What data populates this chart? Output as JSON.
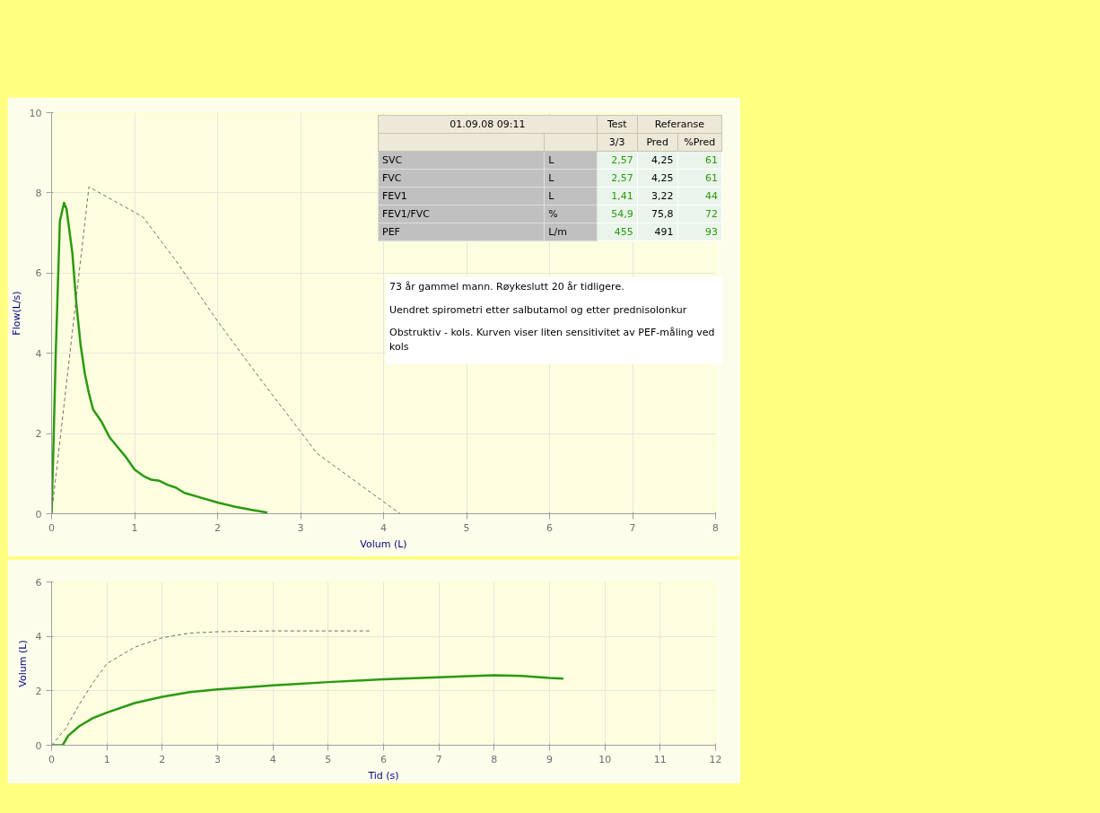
{
  "chart_data": [
    {
      "type": "line",
      "xlabel": "Volum (L)",
      "ylabel": "Flow(L/s)",
      "xlim": [
        0,
        8
      ],
      "ylim": [
        0,
        10
      ],
      "xticks": [
        0,
        1,
        2,
        3,
        4,
        5,
        6,
        7,
        8
      ],
      "yticks": [
        0,
        2,
        4,
        6,
        8,
        10
      ],
      "grid": true,
      "series": [
        {
          "color": "#2a9a10",
          "line_style": "solid",
          "x": [
            0,
            0.02,
            0.05,
            0.1,
            0.15,
            0.18,
            0.25,
            0.3,
            0.35,
            0.4,
            0.45,
            0.5,
            0.6,
            0.7,
            0.8,
            0.9,
            1.0,
            1.1,
            1.2,
            1.3,
            1.4,
            1.5,
            1.6,
            1.8,
            2.0,
            2.2,
            2.4,
            2.6
          ],
          "values": [
            0,
            1.5,
            4,
            7.3,
            7.75,
            7.6,
            6.5,
            5.2,
            4.2,
            3.5,
            3.0,
            2.6,
            2.3,
            1.9,
            1.65,
            1.4,
            1.1,
            0.95,
            0.85,
            0.82,
            0.72,
            0.65,
            0.52,
            0.4,
            0.28,
            0.18,
            0.1,
            0.03
          ]
        },
        {
          "color": "#707070",
          "line_style": "dashed",
          "x": [
            0,
            0.45,
            1.1,
            1.5,
            2.0,
            2.5,
            3.2,
            4.2
          ],
          "values": [
            0,
            8.15,
            7.4,
            6.3,
            4.8,
            3.4,
            1.5,
            0
          ]
        }
      ],
      "annotations": [
        "73 år gammel mann. Røykeslutt 20 år tidligere.",
        "Uendret spirometri etter salbutamol og etter prednisolonkur",
        "Obstruktiv - kols. Kurven viser liten sensitivitet av PEF-måling ved kols"
      ]
    },
    {
      "type": "line",
      "xlabel": "Tid (s)",
      "ylabel": "Volum (L)",
      "xlim": [
        0,
        12
      ],
      "ylim": [
        0,
        6
      ],
      "xticks": [
        0,
        1,
        2,
        3,
        4,
        5,
        6,
        7,
        8,
        9,
        10,
        11,
        12
      ],
      "yticks": [
        0,
        2,
        4,
        6
      ],
      "grid": true,
      "series": [
        {
          "color": "#2a9a10",
          "line_style": "solid",
          "x": [
            0,
            0.2,
            0.3,
            0.5,
            0.75,
            1,
            1.5,
            2,
            2.5,
            3,
            4,
            5,
            6,
            7,
            8,
            8.5,
            9,
            9.25
          ],
          "values": [
            0,
            0,
            0.35,
            0.7,
            1.0,
            1.2,
            1.55,
            1.78,
            1.95,
            2.05,
            2.2,
            2.32,
            2.42,
            2.5,
            2.57,
            2.55,
            2.47,
            2.45
          ]
        },
        {
          "color": "#707070",
          "line_style": "dashed",
          "x": [
            0,
            0.25,
            0.5,
            0.75,
            1,
            1.5,
            2,
            2.5,
            3,
            4,
            5,
            5.75
          ],
          "values": [
            0,
            0.6,
            1.5,
            2.3,
            3.0,
            3.6,
            3.95,
            4.12,
            4.17,
            4.2,
            4.2,
            4.2
          ]
        }
      ]
    },
    {
      "type": "other",
      "title": "01.09.08 09:11",
      "annotations": [
        "Test",
        "Referanse"
      ],
      "categories": [
        null,
        "3/3",
        "Pred",
        "%Pred"
      ],
      "colors": [
        "#000000",
        "#2a9a10",
        "#000000",
        "#2a9a10"
      ],
      "y_categories": [
        "SVC",
        "FVC",
        "FEV1",
        "FEV1/FVC",
        "PEF"
      ],
      "cell_labels": [
        [
          "L",
          "2,57",
          "4,25",
          "61"
        ],
        [
          "L",
          "2,57",
          "4,25",
          "61"
        ],
        [
          "L",
          "1,41",
          "3,22",
          "44"
        ],
        [
          "%",
          "54,9",
          "75,8",
          "72"
        ],
        [
          "L/m",
          "455",
          "491",
          "93"
        ]
      ]
    }
  ]
}
